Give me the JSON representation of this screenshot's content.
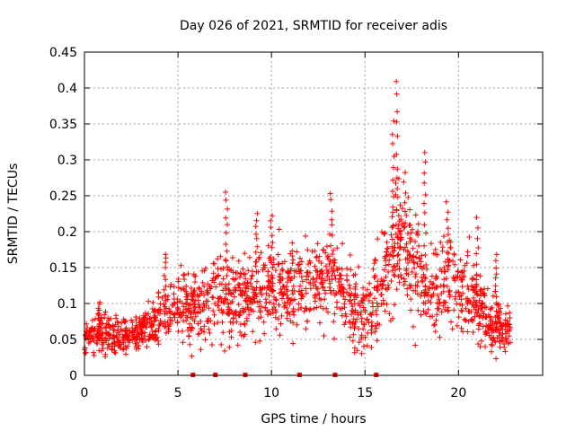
{
  "chart_data": {
    "type": "scatter",
    "title": "Day 026 of 2021, SRMTID for receiver adis",
    "xlabel": "GPS time / hours",
    "ylabel": "SRMTID / TECUs",
    "xlim": [
      0,
      24.5
    ],
    "ylim": [
      0,
      0.45
    ],
    "xticks": [
      0,
      5,
      10,
      15,
      20
    ],
    "xtick_labels": [
      "0",
      "5",
      "10",
      "15",
      "20"
    ],
    "yticks": [
      0,
      0.05,
      0.1,
      0.15,
      0.2,
      0.25,
      0.3,
      0.35,
      0.4,
      0.45
    ],
    "ytick_labels": [
      "0",
      "0.05",
      "0.1",
      "0.15",
      "0.2",
      "0.25",
      "0.3",
      "0.35",
      "0.4",
      "0.45"
    ],
    "grid": true,
    "marker": "+",
    "color": "#ff0000",
    "zero_markers_x": [
      5.8,
      7.0,
      8.6,
      11.5,
      13.4,
      15.6
    ],
    "trend": {
      "x": [
        0,
        1,
        2,
        3,
        4,
        5,
        6,
        7,
        8,
        9,
        10,
        11,
        12,
        13,
        14,
        15,
        16,
        16.8,
        17.5,
        18.5,
        19.5,
        20.5,
        21.5,
        22.8
      ],
      "typical": [
        0.05,
        0.06,
        0.055,
        0.06,
        0.08,
        0.09,
        0.1,
        0.11,
        0.1,
        0.11,
        0.12,
        0.125,
        0.12,
        0.14,
        0.11,
        0.08,
        0.12,
        0.2,
        0.16,
        0.11,
        0.14,
        0.12,
        0.08,
        0.06
      ],
      "spread": [
        0.02,
        0.025,
        0.025,
        0.025,
        0.035,
        0.04,
        0.045,
        0.05,
        0.05,
        0.05,
        0.05,
        0.05,
        0.05,
        0.05,
        0.05,
        0.045,
        0.06,
        0.09,
        0.07,
        0.05,
        0.06,
        0.05,
        0.04,
        0.025
      ]
    },
    "peaks": [
      {
        "x": 16.7,
        "y": 0.41
      },
      {
        "x": 16.5,
        "y": 0.355
      },
      {
        "x": 18.2,
        "y": 0.31
      },
      {
        "x": 7.6,
        "y": 0.255
      },
      {
        "x": 13.2,
        "y": 0.255
      },
      {
        "x": 19.4,
        "y": 0.24
      },
      {
        "x": 9.2,
        "y": 0.228
      },
      {
        "x": 10.0,
        "y": 0.225
      },
      {
        "x": 21.0,
        "y": 0.22
      },
      {
        "x": 4.3,
        "y": 0.17
      },
      {
        "x": 22.0,
        "y": 0.17
      },
      {
        "x": 0.8,
        "y": 0.1
      },
      {
        "x": 14.4,
        "y": 0.03
      },
      {
        "x": 21.8,
        "y": 0.035
      }
    ],
    "n_points": 1700
  }
}
